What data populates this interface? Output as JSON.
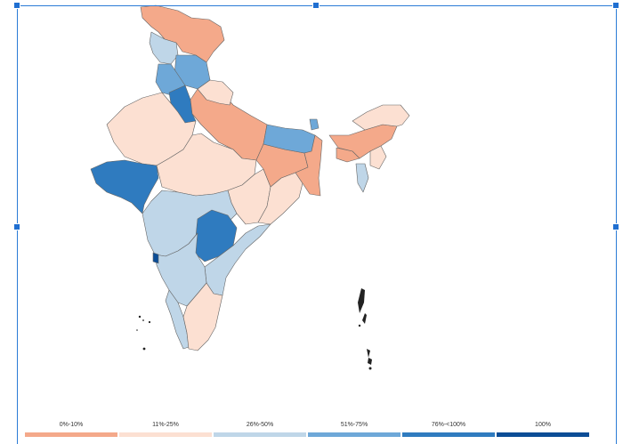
{
  "colors": {
    "bin_0_10": "#f4a98a",
    "bin_11_25": "#fce0d2",
    "bin_26_50": "#bfd6e8",
    "bin_51_75": "#6ea8d8",
    "bin_76_100": "#2f7bbf",
    "bin_100": "#0c4d96",
    "selection": "#1f6fd1"
  },
  "legend": [
    {
      "label": "0%-10%",
      "color": "#f4a98a"
    },
    {
      "label": "11%-25%",
      "color": "#fce0d2"
    },
    {
      "label": "26%-50%",
      "color": "#bfd6e8"
    },
    {
      "label": "51%-75%",
      "color": "#6ea8d8"
    },
    {
      "label": "76%-<100%",
      "color": "#2f7bbf"
    },
    {
      "label": "100%",
      "color": "#0c4d96"
    }
  ]
}
